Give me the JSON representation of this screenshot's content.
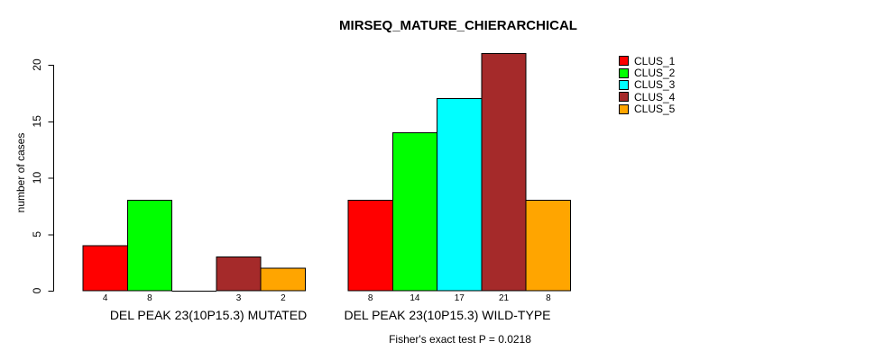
{
  "title": "MIRSEQ_MATURE_CHIERARCHICAL",
  "ylabel": "number of cases",
  "footer": "Fisher's exact test P = 0.0218",
  "chart_data": {
    "type": "bar",
    "grouped": "beside",
    "title": "MIRSEQ_MATURE_CHIERARCHICAL",
    "xlabel": "",
    "ylabel": "number of cases",
    "categories": [
      "DEL PEAK 23(10P15.3) MUTATED",
      "DEL PEAK 23(10P15.3) WILD-TYPE"
    ],
    "series": [
      {
        "name": "CLUS_1",
        "color": "#FF0000",
        "values": [
          4,
          8
        ]
      },
      {
        "name": "CLUS_2",
        "color": "#00FF00",
        "values": [
          8,
          14
        ]
      },
      {
        "name": "CLUS_3",
        "color": "#00FFFF",
        "values": [
          0,
          17
        ]
      },
      {
        "name": "CLUS_4",
        "color": "#A52A2A",
        "values": [
          3,
          21
        ]
      },
      {
        "name": "CLUS_5",
        "color": "#FFA500",
        "values": [
          2,
          8
        ]
      }
    ],
    "bar_value_labels": {
      "shown": true,
      "hide_zero": true
    },
    "yticks": [
      0,
      5,
      10,
      15,
      20
    ],
    "ylim": [
      0,
      21
    ],
    "grid": false,
    "legend_position": "top-right",
    "annotation": "Fisher's exact test P = 0.0218",
    "bar_border_color": "#000000",
    "axis_color": "#000000"
  }
}
